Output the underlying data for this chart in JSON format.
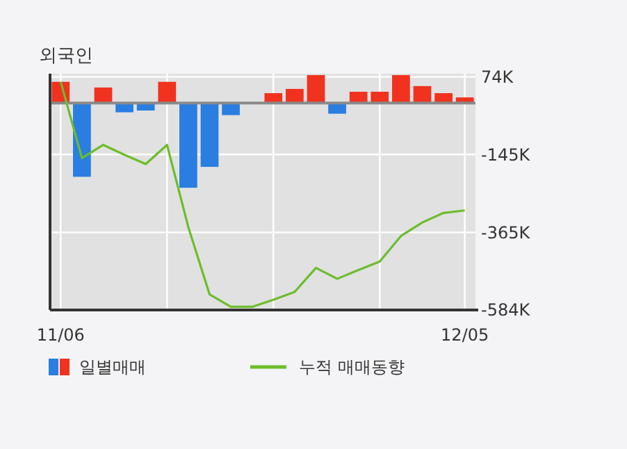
{
  "chart_data": {
    "type": "bar",
    "title": "외국인",
    "categories": [
      "11/06",
      null,
      null,
      null,
      null,
      null,
      null,
      null,
      null,
      null,
      null,
      null,
      null,
      null,
      null,
      null,
      null,
      null,
      null,
      "12/05"
    ],
    "series": [
      {
        "name": "일별매매",
        "colors": [
          "#f0321e",
          "#2a7de1",
          "#f0321e",
          "#2a7de1",
          "#2a7de1",
          "#f0321e",
          "#2a7de1",
          "#2a7de1",
          "#2a7de1",
          "#f0321e",
          "#f0321e",
          "#f0321e",
          "#f0321e",
          "#2a7de1",
          "#f0321e",
          "#f0321e",
          "#f0321e",
          "#f0321e",
          "#f0321e",
          "#f0321e"
        ],
        "values": [
          60000,
          -208000,
          44000,
          -26000,
          -21000,
          60000,
          -239000,
          -180000,
          -34000,
          0,
          28000,
          40000,
          79000,
          -30000,
          32000,
          32000,
          79000,
          48000,
          28000,
          16000
        ]
      },
      {
        "name": "누적 매매동향",
        "type": "line",
        "color": "#6cbd2a",
        "values": [
          60000,
          -155000,
          -118000,
          -146000,
          -172000,
          -118000,
          -350000,
          -540000,
          -575000,
          -575000,
          -555000,
          -533000,
          -465000,
          -496000,
          -471000,
          -447000,
          -375000,
          -337000,
          -310000,
          -303000
        ]
      }
    ],
    "ylim": [
      -584000,
      83000
    ],
    "yticks": [
      {
        "value": 74000,
        "label": "74K"
      },
      {
        "value": -145000,
        "label": "-145K"
      },
      {
        "value": -365000,
        "label": "-365K"
      },
      {
        "value": -584000,
        "label": "-584K"
      }
    ],
    "grid": true,
    "legend": "bottom"
  }
}
